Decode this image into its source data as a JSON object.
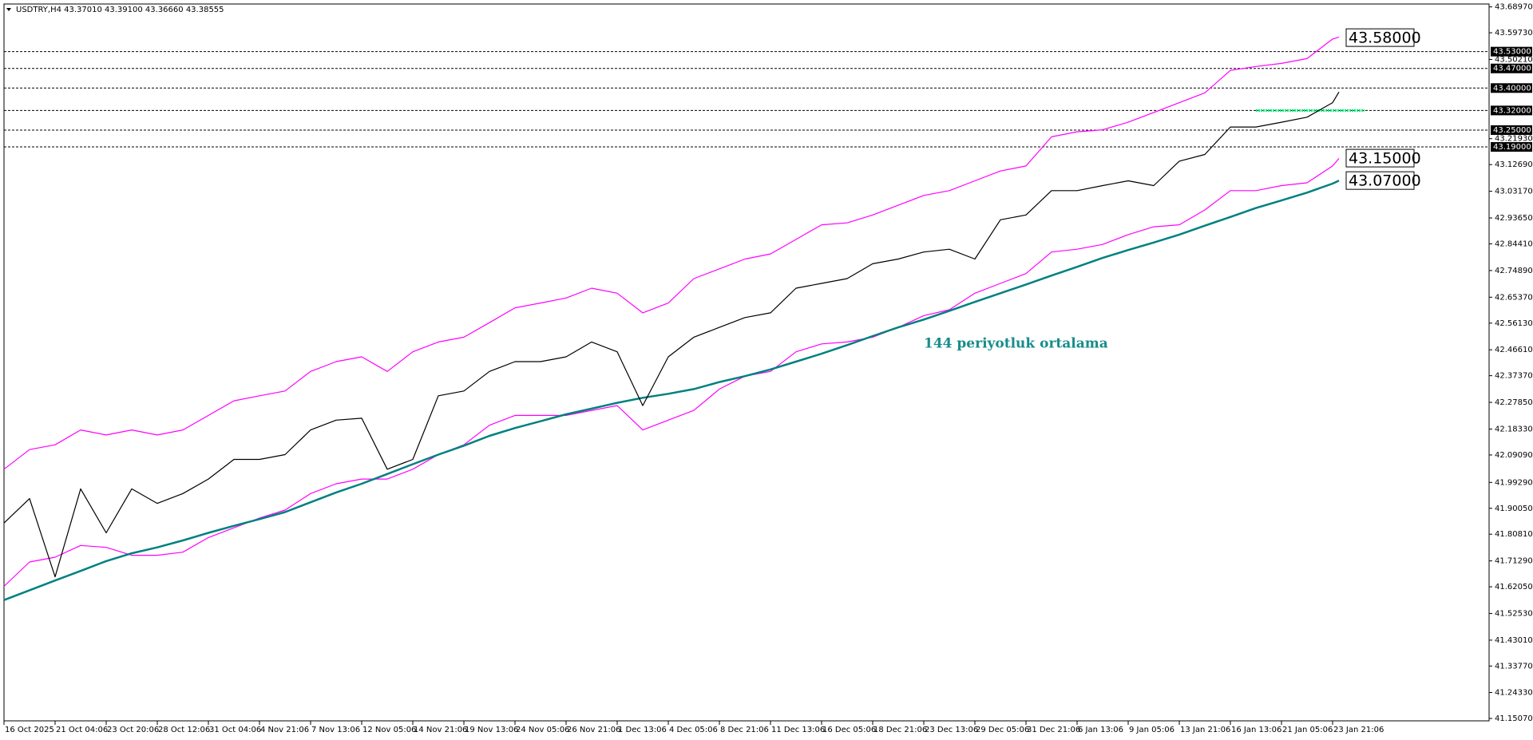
{
  "chart_data": {
    "type": "line",
    "title": "USDTRY,H4  43.37010 43.39100 43.36660 43.38555",
    "annotation": "144 periyotluk ortalama",
    "annotation_color": "#178c8c",
    "grid": false,
    "xlim": [
      0,
      465
    ],
    "ylim": [
      41.1507,
      43.6897
    ],
    "x": [
      0,
      8,
      16,
      24,
      32,
      40,
      48,
      56,
      64,
      72,
      80,
      88,
      96,
      104,
      112,
      120,
      128,
      136,
      144,
      152,
      160,
      168,
      176,
      184,
      192,
      200,
      208,
      216,
      224,
      232,
      240,
      248,
      256,
      264,
      272,
      280,
      288,
      296,
      304,
      312,
      320,
      328,
      336,
      344,
      352,
      360,
      368,
      376,
      384,
      392,
      400,
      408,
      416,
      418
    ],
    "xticks": [
      {
        "value": 0,
        "label": "16 Oct 2025"
      },
      {
        "value": 16,
        "label": "21 Oct 04:06"
      },
      {
        "value": 32,
        "label": "23 Oct 20:06"
      },
      {
        "value": 48,
        "label": "28 Oct 12:06"
      },
      {
        "value": 64,
        "label": "31 Oct 04:06"
      },
      {
        "value": 80,
        "label": "4 Nov 21:06"
      },
      {
        "value": 96,
        "label": "7 Nov 13:06"
      },
      {
        "value": 112,
        "label": "12 Nov 05:06"
      },
      {
        "value": 128,
        "label": "14 Nov 21:06"
      },
      {
        "value": 144,
        "label": "19 Nov 13:06"
      },
      {
        "value": 160,
        "label": "24 Nov 05:06"
      },
      {
        "value": 176,
        "label": "26 Nov 21:06"
      },
      {
        "value": 192,
        "label": "1 Dec 13:06"
      },
      {
        "value": 208,
        "label": "4 Dec 05:06"
      },
      {
        "value": 224,
        "label": "8 Dec 21:06"
      },
      {
        "value": 240,
        "label": "11 Dec 13:06"
      },
      {
        "value": 256,
        "label": "16 Dec 05:06"
      },
      {
        "value": 272,
        "label": "18 Dec 21:06"
      },
      {
        "value": 288,
        "label": "23 Dec 13:06"
      },
      {
        "value": 304,
        "label": "29 Dec 05:06"
      },
      {
        "value": 320,
        "label": "31 Dec 21:06"
      },
      {
        "value": 336,
        "label": "6 Jan 13:06"
      },
      {
        "value": 352,
        "label": "9 Jan 05:06"
      },
      {
        "value": 368,
        "label": "13 Jan 21:06"
      },
      {
        "value": 384,
        "label": "16 Jan 13:06"
      },
      {
        "value": 400,
        "label": "21 Jan 05:06"
      },
      {
        "value": 416,
        "label": "23 Jan 21:06"
      }
    ],
    "yticks": [
      {
        "value": 43.6897,
        "label": "43.68970"
      },
      {
        "value": 43.5973,
        "label": "43.59730"
      },
      {
        "value": 43.5021,
        "label": "43.50210"
      },
      {
        "value": 43.2193,
        "label": "43.21930"
      },
      {
        "value": 43.1269,
        "label": "43.12690"
      },
      {
        "value": 43.0317,
        "label": "43.03170"
      },
      {
        "value": 42.9365,
        "label": "42.93650"
      },
      {
        "value": 42.8441,
        "label": "42.84410"
      },
      {
        "value": 42.7489,
        "label": "42.74890"
      },
      {
        "value": 42.6537,
        "label": "42.65370"
      },
      {
        "value": 42.5613,
        "label": "42.56130"
      },
      {
        "value": 42.4661,
        "label": "42.46610"
      },
      {
        "value": 42.3737,
        "label": "42.37370"
      },
      {
        "value": 42.2785,
        "label": "42.27850"
      },
      {
        "value": 42.1833,
        "label": "42.18330"
      },
      {
        "value": 42.0909,
        "label": "42.09090"
      },
      {
        "value": 41.9929,
        "label": "41.99290"
      },
      {
        "value": 41.9005,
        "label": "41.90050"
      },
      {
        "value": 41.8081,
        "label": "41.80810"
      },
      {
        "value": 41.7129,
        "label": "41.71290"
      },
      {
        "value": 41.6205,
        "label": "41.62050"
      },
      {
        "value": 41.5253,
        "label": "41.52530"
      },
      {
        "value": 41.4301,
        "label": "41.43010"
      },
      {
        "value": 41.3377,
        "label": "41.33770"
      },
      {
        "value": 41.2433,
        "label": "41.24330"
      },
      {
        "value": 41.1507,
        "label": "41.15070"
      }
    ],
    "series": [
      {
        "color": "#ff00ff",
        "values": [
          42.04,
          42.11,
          42.127,
          42.18,
          42.162,
          42.18,
          42.162,
          42.18,
          42.232,
          42.284,
          42.302,
          42.319,
          42.389,
          42.424,
          42.441,
          42.389,
          42.459,
          42.494,
          42.511,
          42.563,
          42.616,
          42.633,
          42.651,
          42.686,
          42.668,
          42.598,
          42.633,
          42.72,
          42.755,
          42.79,
          42.808,
          42.86,
          42.912,
          42.919,
          42.947,
          42.982,
          43.017,
          43.034,
          43.069,
          43.104,
          43.122,
          43.226,
          43.244,
          43.251,
          43.278,
          43.313,
          43.348,
          43.383,
          43.463,
          43.477,
          43.488,
          43.505,
          43.575,
          43.582
        ]
      },
      {
        "color": "#ff00ff",
        "values": [
          41.622,
          41.709,
          41.726,
          41.768,
          41.761,
          41.733,
          41.733,
          41.744,
          41.796,
          41.831,
          41.866,
          41.894,
          41.953,
          41.988,
          42.005,
          42.005,
          42.04,
          42.092,
          42.127,
          42.197,
          42.232,
          42.232,
          42.232,
          42.25,
          42.267,
          42.18,
          42.215,
          42.25,
          42.326,
          42.372,
          42.389,
          42.459,
          42.487,
          42.494,
          42.511,
          42.546,
          42.588,
          42.609,
          42.668,
          42.703,
          42.738,
          42.815,
          42.825,
          42.842,
          42.877,
          42.905,
          42.912,
          42.965,
          43.034,
          43.034,
          43.052,
          43.062,
          43.122,
          43.149
        ]
      },
      {
        "color": "#008080",
        "values": [
          41.573,
          41.608,
          41.643,
          41.677,
          41.712,
          41.74,
          41.761,
          41.786,
          41.813,
          41.838,
          41.862,
          41.887,
          41.922,
          41.957,
          41.988,
          42.023,
          42.058,
          42.092,
          42.124,
          42.159,
          42.187,
          42.211,
          42.236,
          42.256,
          42.277,
          42.295,
          42.309,
          42.326,
          42.351,
          42.372,
          42.396,
          42.424,
          42.452,
          42.483,
          42.515,
          42.546,
          42.574,
          42.605,
          42.637,
          42.668,
          42.699,
          42.731,
          42.762,
          42.794,
          42.822,
          42.849,
          42.877,
          42.909,
          42.94,
          42.972,
          42.999,
          43.027,
          43.059,
          43.07
        ]
      },
      {
        "color": "#000000",
        "values": [
          41.848,
          41.935,
          41.656,
          41.97,
          41.813,
          41.97,
          41.918,
          41.953,
          42.005,
          42.075,
          42.075,
          42.092,
          42.18,
          42.215,
          42.222,
          42.04,
          42.075,
          42.302,
          42.319,
          42.389,
          42.424,
          42.424,
          42.441,
          42.494,
          42.459,
          42.267,
          42.441,
          42.511,
          42.546,
          42.581,
          42.598,
          42.686,
          42.703,
          42.72,
          42.773,
          42.79,
          42.815,
          42.825,
          42.79,
          42.93,
          42.947,
          43.034,
          43.034,
          43.052,
          43.069,
          43.052,
          43.139,
          43.163,
          43.261,
          43.261,
          43.278,
          43.296,
          43.348,
          43.386
        ]
      }
    ],
    "levels": [
      {
        "value": 43.53,
        "label": "43.53000"
      },
      {
        "value": 43.47,
        "label": "43.47000"
      },
      {
        "value": 43.4,
        "label": "43.40000"
      },
      {
        "value": 43.32,
        "label": "43.32000"
      },
      {
        "value": 43.25,
        "label": "43.25000"
      },
      {
        "value": 43.19,
        "label": "43.19000"
      }
    ],
    "price_labels": [
      {
        "value": 43.58,
        "label": "43.58000"
      },
      {
        "value": 43.15,
        "label": "43.15000"
      },
      {
        "value": 43.07,
        "label": "43.07000"
      }
    ],
    "highlight_line": {
      "value": 43.32,
      "x": [
        392,
        426
      ],
      "color": "#00e676"
    }
  }
}
